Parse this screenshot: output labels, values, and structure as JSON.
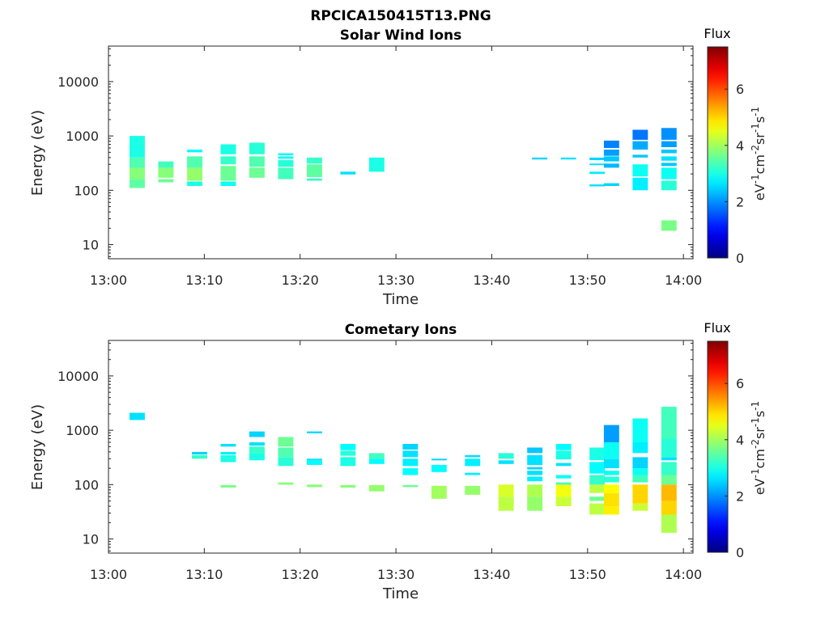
{
  "figure": {
    "title": "RPCICA150415T13.PNG"
  },
  "colorbar": {
    "label": "Flux",
    "ticks": [
      "0",
      "2",
      "4",
      "6"
    ],
    "min": 0,
    "max": 7.5,
    "colormap": "jet",
    "units_parts": [
      {
        "t": "eV",
        "sup": false
      },
      {
        "t": "-1",
        "sup": true
      },
      {
        "t": "cm",
        "sup": false
      },
      {
        "t": "-2",
        "sup": true
      },
      {
        "t": "sr",
        "sup": false
      },
      {
        "t": "-1",
        "sup": true
      },
      {
        "t": "s",
        "sup": false
      },
      {
        "t": "-1",
        "sup": true
      }
    ]
  },
  "chart_data": [
    {
      "type": "heatmap",
      "title": "Solar Wind Ions",
      "xlabel": "Time",
      "ylabel": "Energy (eV)",
      "xticks": [
        "13:00",
        "13:10",
        "13:20",
        "13:30",
        "13:40",
        "13:50",
        "14:00"
      ],
      "yticks": [
        "10",
        "100",
        "1000",
        "10000"
      ],
      "xlim_minutes": [
        0,
        61
      ],
      "ylim": [
        5.5,
        45000
      ],
      "yscale": "log",
      "grid": false,
      "columns": [
        {
          "t": 3.0,
          "width": 1.6,
          "bins": [
            [
              110,
              160,
              3.5
            ],
            [
              160,
              260,
              3.8
            ],
            [
              260,
              400,
              3.4
            ],
            [
              400,
              1000,
              3.0
            ]
          ]
        },
        {
          "t": 6.0,
          "width": 1.6,
          "bins": [
            [
              140,
              160,
              3.6
            ],
            [
              170,
              260,
              3.8
            ],
            [
              260,
              340,
              3.3
            ]
          ]
        },
        {
          "t": 9.0,
          "width": 1.6,
          "bins": [
            [
              120,
              145,
              3.0
            ],
            [
              150,
              260,
              3.9
            ],
            [
              260,
              420,
              3.4
            ],
            [
              500,
              560,
              2.8
            ]
          ]
        },
        {
          "t": 12.5,
          "width": 1.6,
          "bins": [
            [
              120,
              145,
              2.9
            ],
            [
              150,
              280,
              3.6
            ],
            [
              300,
              420,
              3.2
            ],
            [
              460,
              700,
              3.0
            ]
          ]
        },
        {
          "t": 15.5,
          "width": 1.6,
          "bins": [
            [
              170,
              260,
              3.6
            ],
            [
              270,
              420,
              3.4
            ],
            [
              460,
              750,
              3.1
            ]
          ]
        },
        {
          "t": 18.5,
          "width": 1.6,
          "bins": [
            [
              160,
              260,
              3.3
            ],
            [
              270,
              360,
              3.1
            ],
            [
              380,
              420,
              2.8
            ],
            [
              440,
              480,
              2.9
            ]
          ]
        },
        {
          "t": 21.5,
          "width": 1.6,
          "bins": [
            [
              150,
              165,
              3.2
            ],
            [
              175,
              300,
              3.5
            ],
            [
              310,
              400,
              3.2
            ]
          ]
        },
        {
          "t": 25.0,
          "width": 1.6,
          "bins": [
            [
              195,
              220,
              2.6
            ]
          ]
        },
        {
          "t": 28.0,
          "width": 1.6,
          "bins": [
            [
              220,
              400,
              3.0
            ]
          ]
        },
        {
          "t": 45.0,
          "width": 1.6,
          "bins": [
            [
              370,
              400,
              2.5
            ]
          ]
        },
        {
          "t": 48.0,
          "width": 1.6,
          "bins": [
            [
              370,
              400,
              2.6
            ]
          ]
        },
        {
          "t": 51.0,
          "width": 1.6,
          "bins": [
            [
              118,
              128,
              2.6
            ],
            [
              200,
              220,
              2.7
            ],
            [
              290,
              310,
              2.6
            ],
            [
              360,
              400,
              2.5
            ]
          ]
        },
        {
          "t": 52.5,
          "width": 1.6,
          "bins": [
            [
              120,
              135,
              2.5
            ],
            [
              260,
              310,
              2.3
            ],
            [
              340,
              420,
              2.4
            ],
            [
              430,
              560,
              2.1
            ],
            [
              600,
              820,
              1.9
            ]
          ]
        },
        {
          "t": 55.5,
          "width": 1.6,
          "bins": [
            [
              100,
              170,
              2.7
            ],
            [
              180,
              300,
              2.9
            ],
            [
              400,
              450,
              2.4
            ],
            [
              560,
              800,
              2.2
            ],
            [
              850,
              1300,
              1.8
            ]
          ]
        },
        {
          "t": 58.5,
          "width": 1.6,
          "bins": [
            [
              18,
              28,
              3.7
            ],
            [
              100,
              150,
              3.1
            ],
            [
              160,
              260,
              2.9
            ],
            [
              280,
              320,
              2.4
            ],
            [
              350,
              420,
              2.6
            ],
            [
              480,
              560,
              2.4
            ],
            [
              620,
              800,
              2.1
            ],
            [
              850,
              1400,
              2.0
            ]
          ]
        }
      ]
    },
    {
      "type": "heatmap",
      "title": "Cometary Ions",
      "xlabel": "Time",
      "ylabel": "Energy (eV)",
      "xticks": [
        "13:00",
        "13:10",
        "13:20",
        "13:30",
        "13:40",
        "13:50",
        "14:00"
      ],
      "yticks": [
        "10",
        "100",
        "1000",
        "10000"
      ],
      "xlim_minutes": [
        0,
        61
      ],
      "ylim": [
        5.5,
        45000
      ],
      "yscale": "log",
      "grid": false,
      "columns": [
        {
          "t": 3.0,
          "width": 1.6,
          "bins": [
            [
              1550,
              2100,
              2.6
            ]
          ]
        },
        {
          "t": 9.5,
          "width": 1.6,
          "bins": [
            [
              300,
              350,
              3.2
            ],
            [
              360,
              400,
              2.5
            ]
          ]
        },
        {
          "t": 12.5,
          "width": 1.6,
          "bins": [
            [
              88,
              98,
              3.7
            ],
            [
              260,
              350,
              3.0
            ],
            [
              360,
              400,
              2.7
            ],
            [
              500,
              560,
              2.6
            ]
          ]
        },
        {
          "t": 15.5,
          "width": 1.6,
          "bins": [
            [
              280,
              380,
              3.0
            ],
            [
              380,
              500,
              3.2
            ],
            [
              520,
              600,
              2.6
            ],
            [
              750,
              950,
              2.5
            ]
          ]
        },
        {
          "t": 18.5,
          "width": 1.6,
          "bins": [
            [
              100,
              110,
              3.8
            ],
            [
              220,
              320,
              3.1
            ],
            [
              320,
              480,
              3.4
            ],
            [
              500,
              750,
              3.6
            ]
          ]
        },
        {
          "t": 21.5,
          "width": 1.6,
          "bins": [
            [
              90,
              100,
              3.8
            ],
            [
              230,
              280,
              2.8
            ],
            [
              280,
              300,
              2.6
            ],
            [
              880,
              950,
              2.5
            ]
          ]
        },
        {
          "t": 25.0,
          "width": 1.6,
          "bins": [
            [
              88,
              98,
              3.8
            ],
            [
              220,
              320,
              3.0
            ],
            [
              340,
              420,
              3.1
            ],
            [
              430,
              560,
              2.8
            ]
          ]
        },
        {
          "t": 28.0,
          "width": 1.6,
          "bins": [
            [
              75,
              98,
              3.9
            ],
            [
              240,
              300,
              2.8
            ],
            [
              300,
              380,
              3.3
            ]
          ]
        },
        {
          "t": 31.5,
          "width": 1.6,
          "bins": [
            [
              90,
              98,
              3.6
            ],
            [
              150,
              200,
              2.8
            ],
            [
              220,
              300,
              2.7
            ],
            [
              320,
              420,
              2.6
            ],
            [
              440,
              560,
              2.5
            ]
          ]
        },
        {
          "t": 34.5,
          "width": 1.6,
          "bins": [
            [
              55,
              95,
              4.0
            ],
            [
              170,
              230,
              2.8
            ],
            [
              280,
              300,
              2.5
            ]
          ]
        },
        {
          "t": 38.0,
          "width": 1.6,
          "bins": [
            [
              65,
              95,
              3.9
            ],
            [
              150,
              165,
              2.7
            ],
            [
              220,
              300,
              2.7
            ],
            [
              320,
              350,
              2.6
            ]
          ]
        },
        {
          "t": 41.5,
          "width": 1.6,
          "bins": [
            [
              33,
              60,
              4.2
            ],
            [
              60,
              100,
              4.4
            ],
            [
              240,
              280,
              2.6
            ],
            [
              300,
              380,
              3.1
            ]
          ]
        },
        {
          "t": 44.5,
          "width": 1.6,
          "bins": [
            [
              33,
              60,
              3.9
            ],
            [
              60,
              100,
              4.1
            ],
            [
              115,
              140,
              2.7
            ],
            [
              150,
              180,
              2.6
            ],
            [
              190,
              210,
              2.5
            ],
            [
              230,
              350,
              2.6
            ],
            [
              380,
              480,
              2.4
            ]
          ]
        },
        {
          "t": 47.5,
          "width": 1.6,
          "bins": [
            [
              40,
              60,
              4.3
            ],
            [
              60,
              100,
              4.6
            ],
            [
              100,
              110,
              3.3
            ],
            [
              130,
              150,
              2.9
            ],
            [
              220,
              250,
              2.6
            ],
            [
              290,
              420,
              3.0
            ],
            [
              430,
              560,
              2.8
            ]
          ]
        },
        {
          "t": 51.0,
          "width": 1.6,
          "bins": [
            [
              28,
              45,
              4.2
            ],
            [
              50,
              60,
              3.6
            ],
            [
              70,
              100,
              4.2
            ],
            [
              100,
              150,
              3.2
            ],
            [
              160,
              260,
              2.8
            ],
            [
              280,
              480,
              3.0
            ]
          ]
        },
        {
          "t": 52.5,
          "width": 1.6,
          "bins": [
            [
              28,
              40,
              4.8
            ],
            [
              40,
              70,
              4.9
            ],
            [
              70,
              100,
              4.7
            ],
            [
              110,
              140,
              3.1
            ],
            [
              150,
              180,
              2.9
            ],
            [
              200,
              300,
              2.6
            ],
            [
              300,
              600,
              2.9
            ],
            [
              600,
              1250,
              2.1
            ]
          ]
        },
        {
          "t": 55.5,
          "width": 1.6,
          "bins": [
            [
              33,
              45,
              4.3
            ],
            [
              45,
              100,
              5.0
            ],
            [
              110,
              150,
              3.3
            ],
            [
              150,
              200,
              2.9
            ],
            [
              200,
              320,
              2.5
            ],
            [
              380,
              600,
              2.7
            ],
            [
              600,
              1650,
              2.9
            ]
          ]
        },
        {
          "t": 58.5,
          "width": 1.6,
          "bins": [
            [
              13,
              28,
              4.1
            ],
            [
              28,
              50,
              5.0
            ],
            [
              50,
              100,
              5.2
            ],
            [
              100,
              150,
              3.6
            ],
            [
              150,
              260,
              3.2
            ],
            [
              280,
              320,
              2.6
            ],
            [
              320,
              700,
              3.1
            ],
            [
              700,
              2700,
              3.3
            ]
          ]
        }
      ]
    }
  ]
}
